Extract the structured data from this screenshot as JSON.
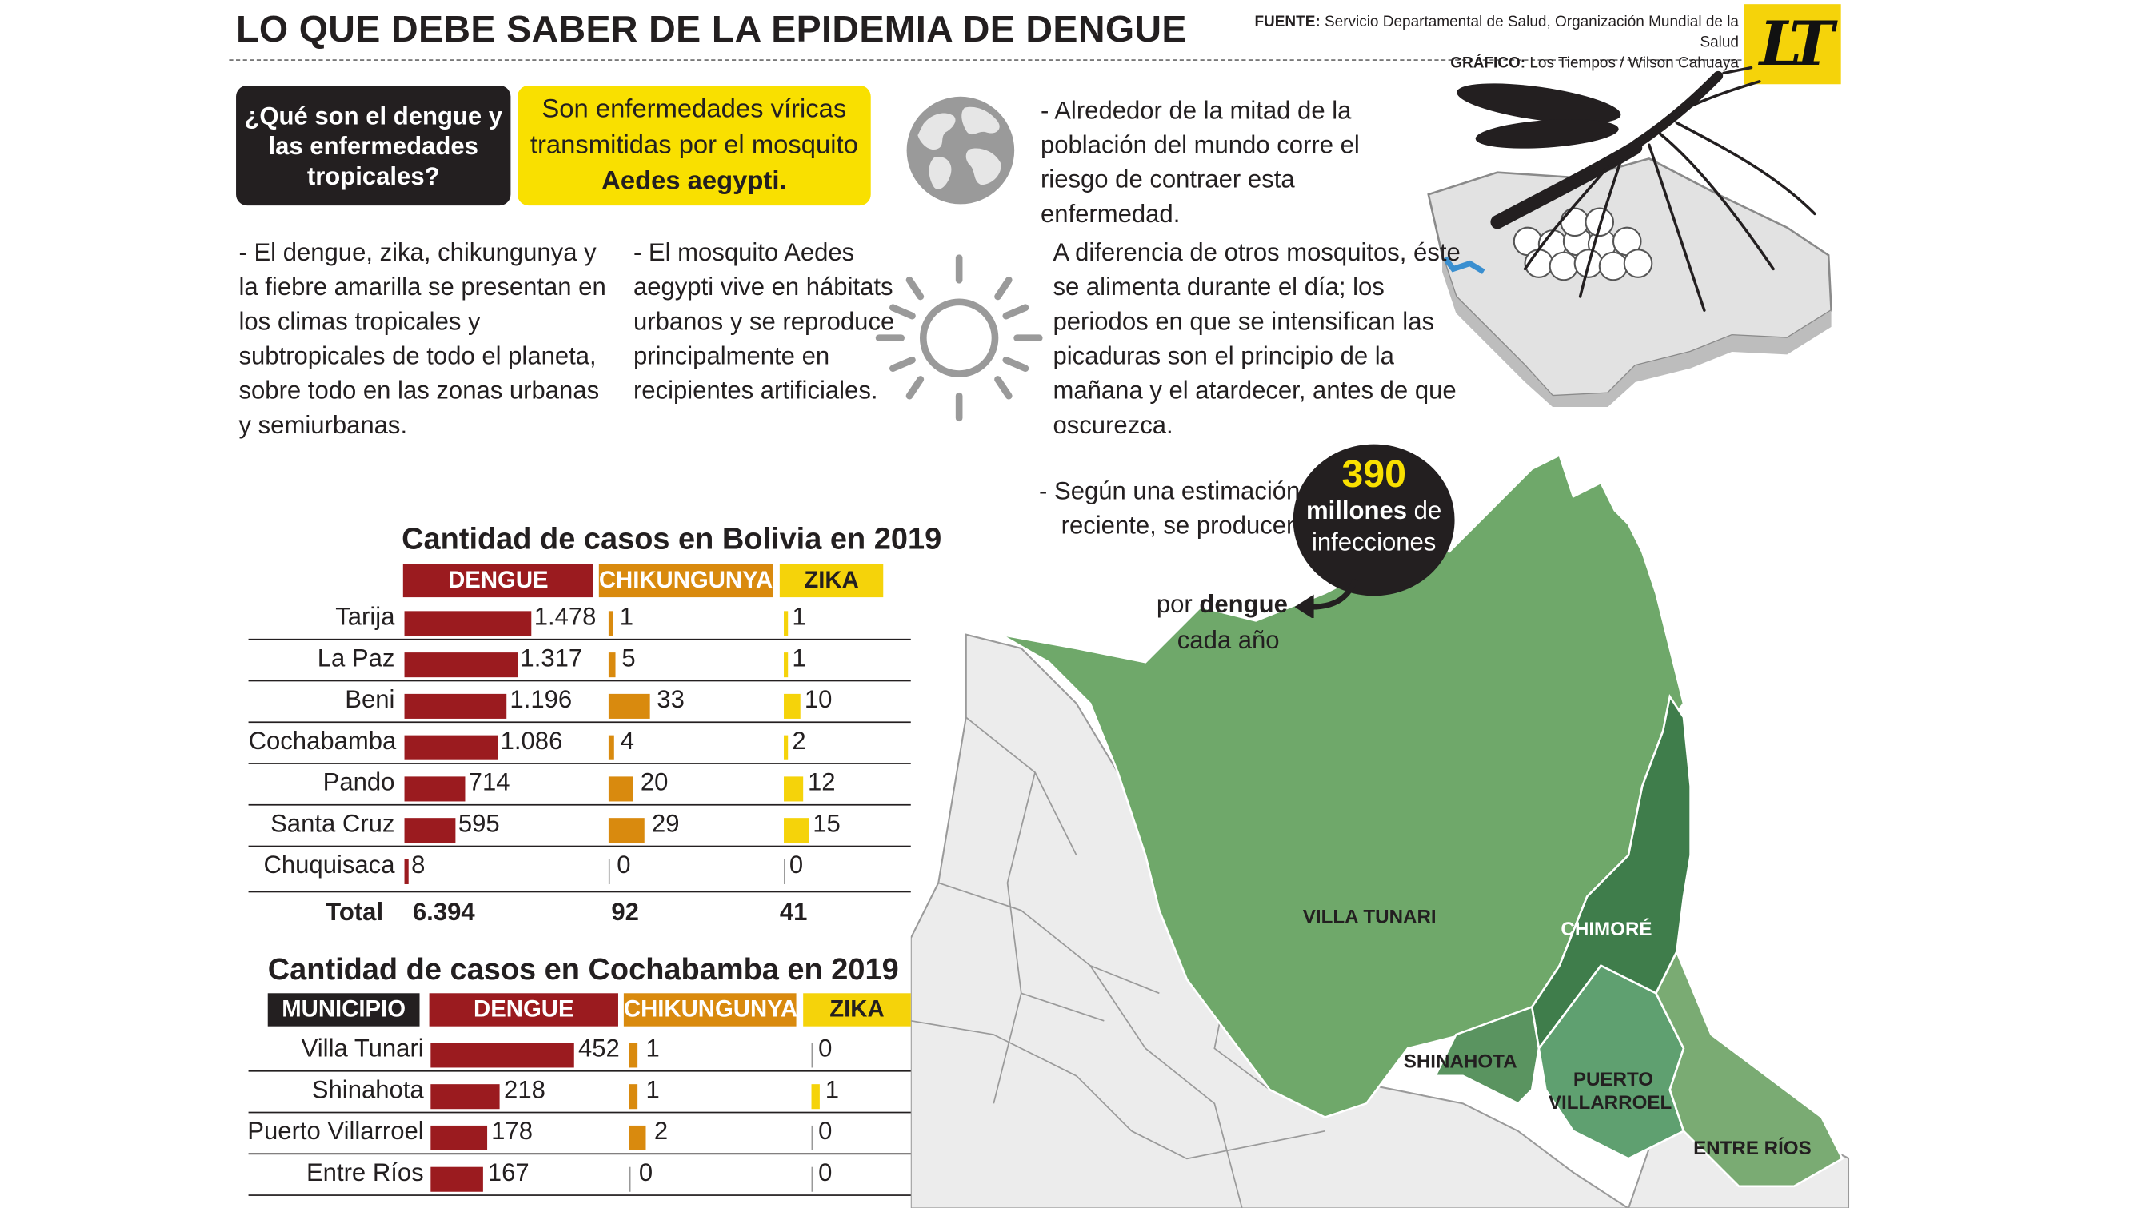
{
  "header": {
    "title": "LO QUE DEBE SABER DE LA EPIDEMIA DE DENGUE",
    "source_label": "FUENTE:",
    "source_text": "Servicio Departamental de Salud, Organización Mundial de la Salud",
    "graphic_label": "GRÁFICO:",
    "graphic_text": "Los Tiempos / Wilson Cahuaya",
    "logo": "LT"
  },
  "intro": {
    "question": "¿Qué son el dengue y las enfermedades tropicales?",
    "answer_line1": "Son enfermedades víricas transmitidas por el mosquito",
    "answer_strong": "Aedes aegypti.",
    "world_fact": "- Alrededor de la mitad de la población del mundo corre el riesgo de contraer esta enfermedad.",
    "climate_fact": "- El dengue, zika, chikungunya y la fiebre amarilla se presentan en los climas tropicales y subtropicales de todo el planeta, sobre todo en las zonas urbanas y semiurbanas.",
    "habitat_fact": "- El mosquito Aedes aegypti vive en hábitats urbanos y se reproduce principalmente en recipientes artificiales.",
    "feeding_fact": "A diferencia de otros mosquitos, éste se alimenta durante el día; los periodos en que se intensifican las picaduras son el principio de la mañana y el atardecer, antes de que oscurezca.",
    "estimate_fact": "- Según una estimación reciente, se producen",
    "bubble_number": "390",
    "bubble_millones": "millones",
    "bubble_de": "de",
    "bubble_infecciones": "infecciones",
    "por": "por",
    "por_dengue": "dengue",
    "cada_ano": "cada año"
  },
  "colors": {
    "dengue": "#9b1b1f",
    "chikungunya": "#d98a0e",
    "zika": "#f5d30a",
    "map_light": "#6fa86a",
    "map_dark": "#3f7d4b",
    "map_mid": "#5fa070"
  },
  "bolivia": {
    "title": "Cantidad de casos en Bolivia en 2019",
    "headers": [
      "DENGUE",
      "CHIKUNGUNYA",
      "ZIKA"
    ],
    "rows": [
      {
        "name": "Tarija",
        "dengue": 1478,
        "dengue_label": "1.478",
        "chik": 1,
        "chik_label": "1",
        "zika": 1,
        "zika_label": "1"
      },
      {
        "name": "La Paz",
        "dengue": 1317,
        "dengue_label": "1.317",
        "chik": 5,
        "chik_label": "5",
        "zika": 1,
        "zika_label": "1"
      },
      {
        "name": "Beni",
        "dengue": 1196,
        "dengue_label": "1.196",
        "chik": 33,
        "chik_label": "33",
        "zika": 10,
        "zika_label": "10"
      },
      {
        "name": "Cochabamba",
        "dengue": 1086,
        "dengue_label": "1.086",
        "chik": 4,
        "chik_label": "4",
        "zika": 2,
        "zika_label": "2"
      },
      {
        "name": "Pando",
        "dengue": 714,
        "dengue_label": "714",
        "chik": 20,
        "chik_label": "20",
        "zika": 12,
        "zika_label": "12"
      },
      {
        "name": "Santa Cruz",
        "dengue": 595,
        "dengue_label": "595",
        "chik": 29,
        "chik_label": "29",
        "zika": 15,
        "zika_label": "15"
      },
      {
        "name": "Chuquisaca",
        "dengue": 8,
        "dengue_label": "8",
        "chik": 0,
        "chik_label": "0",
        "zika": 0,
        "zika_label": "0"
      }
    ],
    "total_label": "Total",
    "total_dengue": "6.394",
    "total_chik": "92",
    "total_zika": "41"
  },
  "cochabamba": {
    "title": "Cantidad de casos en Cochabamba en 2019",
    "headers": [
      "MUNICIPIO",
      "DENGUE",
      "CHIKUNGUNYA",
      "ZIKA"
    ],
    "rows": [
      {
        "name": "Villa Tunari",
        "dengue": 452,
        "dengue_label": "452",
        "chik": 1,
        "chik_label": "1",
        "zika": 0,
        "zika_label": "0"
      },
      {
        "name": "Shinahota",
        "dengue": 218,
        "dengue_label": "218",
        "chik": 1,
        "chik_label": "1",
        "zika": 1,
        "zika_label": "1"
      },
      {
        "name": "Puerto Villarroel",
        "dengue": 178,
        "dengue_label": "178",
        "chik": 2,
        "chik_label": "2",
        "zika": 0,
        "zika_label": "0"
      },
      {
        "name": "Entre Ríos",
        "dengue": 167,
        "dengue_label": "167",
        "chik": 0,
        "chik_label": "0",
        "zika": 0,
        "zika_label": "0"
      }
    ]
  },
  "map_labels": {
    "villa_tunari": "VILLA TUNARI",
    "chimore": "CHIMORÉ",
    "shinahota": "SHINAHOTA",
    "puerto_villarroel_1": "PUERTO",
    "puerto_villarroel_2": "VILLARROEL",
    "entre_rios": "ENTRE RÍOS"
  }
}
